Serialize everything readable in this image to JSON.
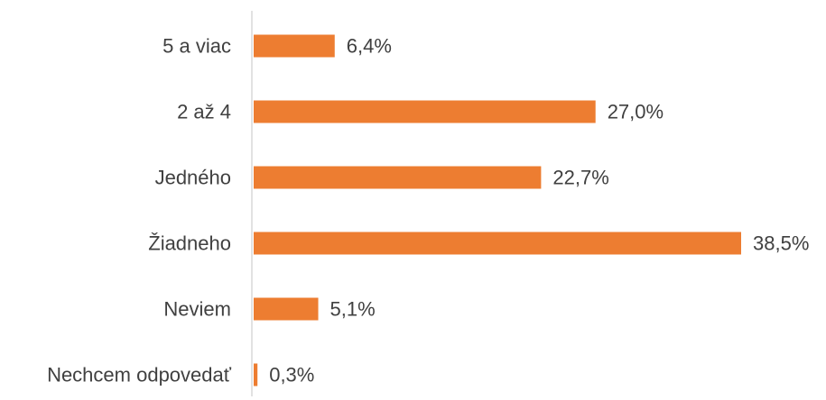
{
  "chart_data": {
    "type": "bar",
    "orientation": "horizontal",
    "categories": [
      "5 a viac",
      "2 až 4",
      "Jedného",
      "Žiadneho",
      "Neviem",
      "Nechcem odpovedať"
    ],
    "values": [
      6.4,
      27.0,
      22.7,
      38.5,
      5.1,
      0.3
    ],
    "value_labels": [
      "6,4%",
      "27,0%",
      "22,7%",
      "38,5%",
      "5,1%",
      "0,3%"
    ],
    "unit": "%",
    "xlim": [
      0,
      38.5
    ],
    "grid": false,
    "legend": "none",
    "bar_color": "#ED7D31",
    "axis_color": "#D9D9D9",
    "text_color": "#404040"
  }
}
